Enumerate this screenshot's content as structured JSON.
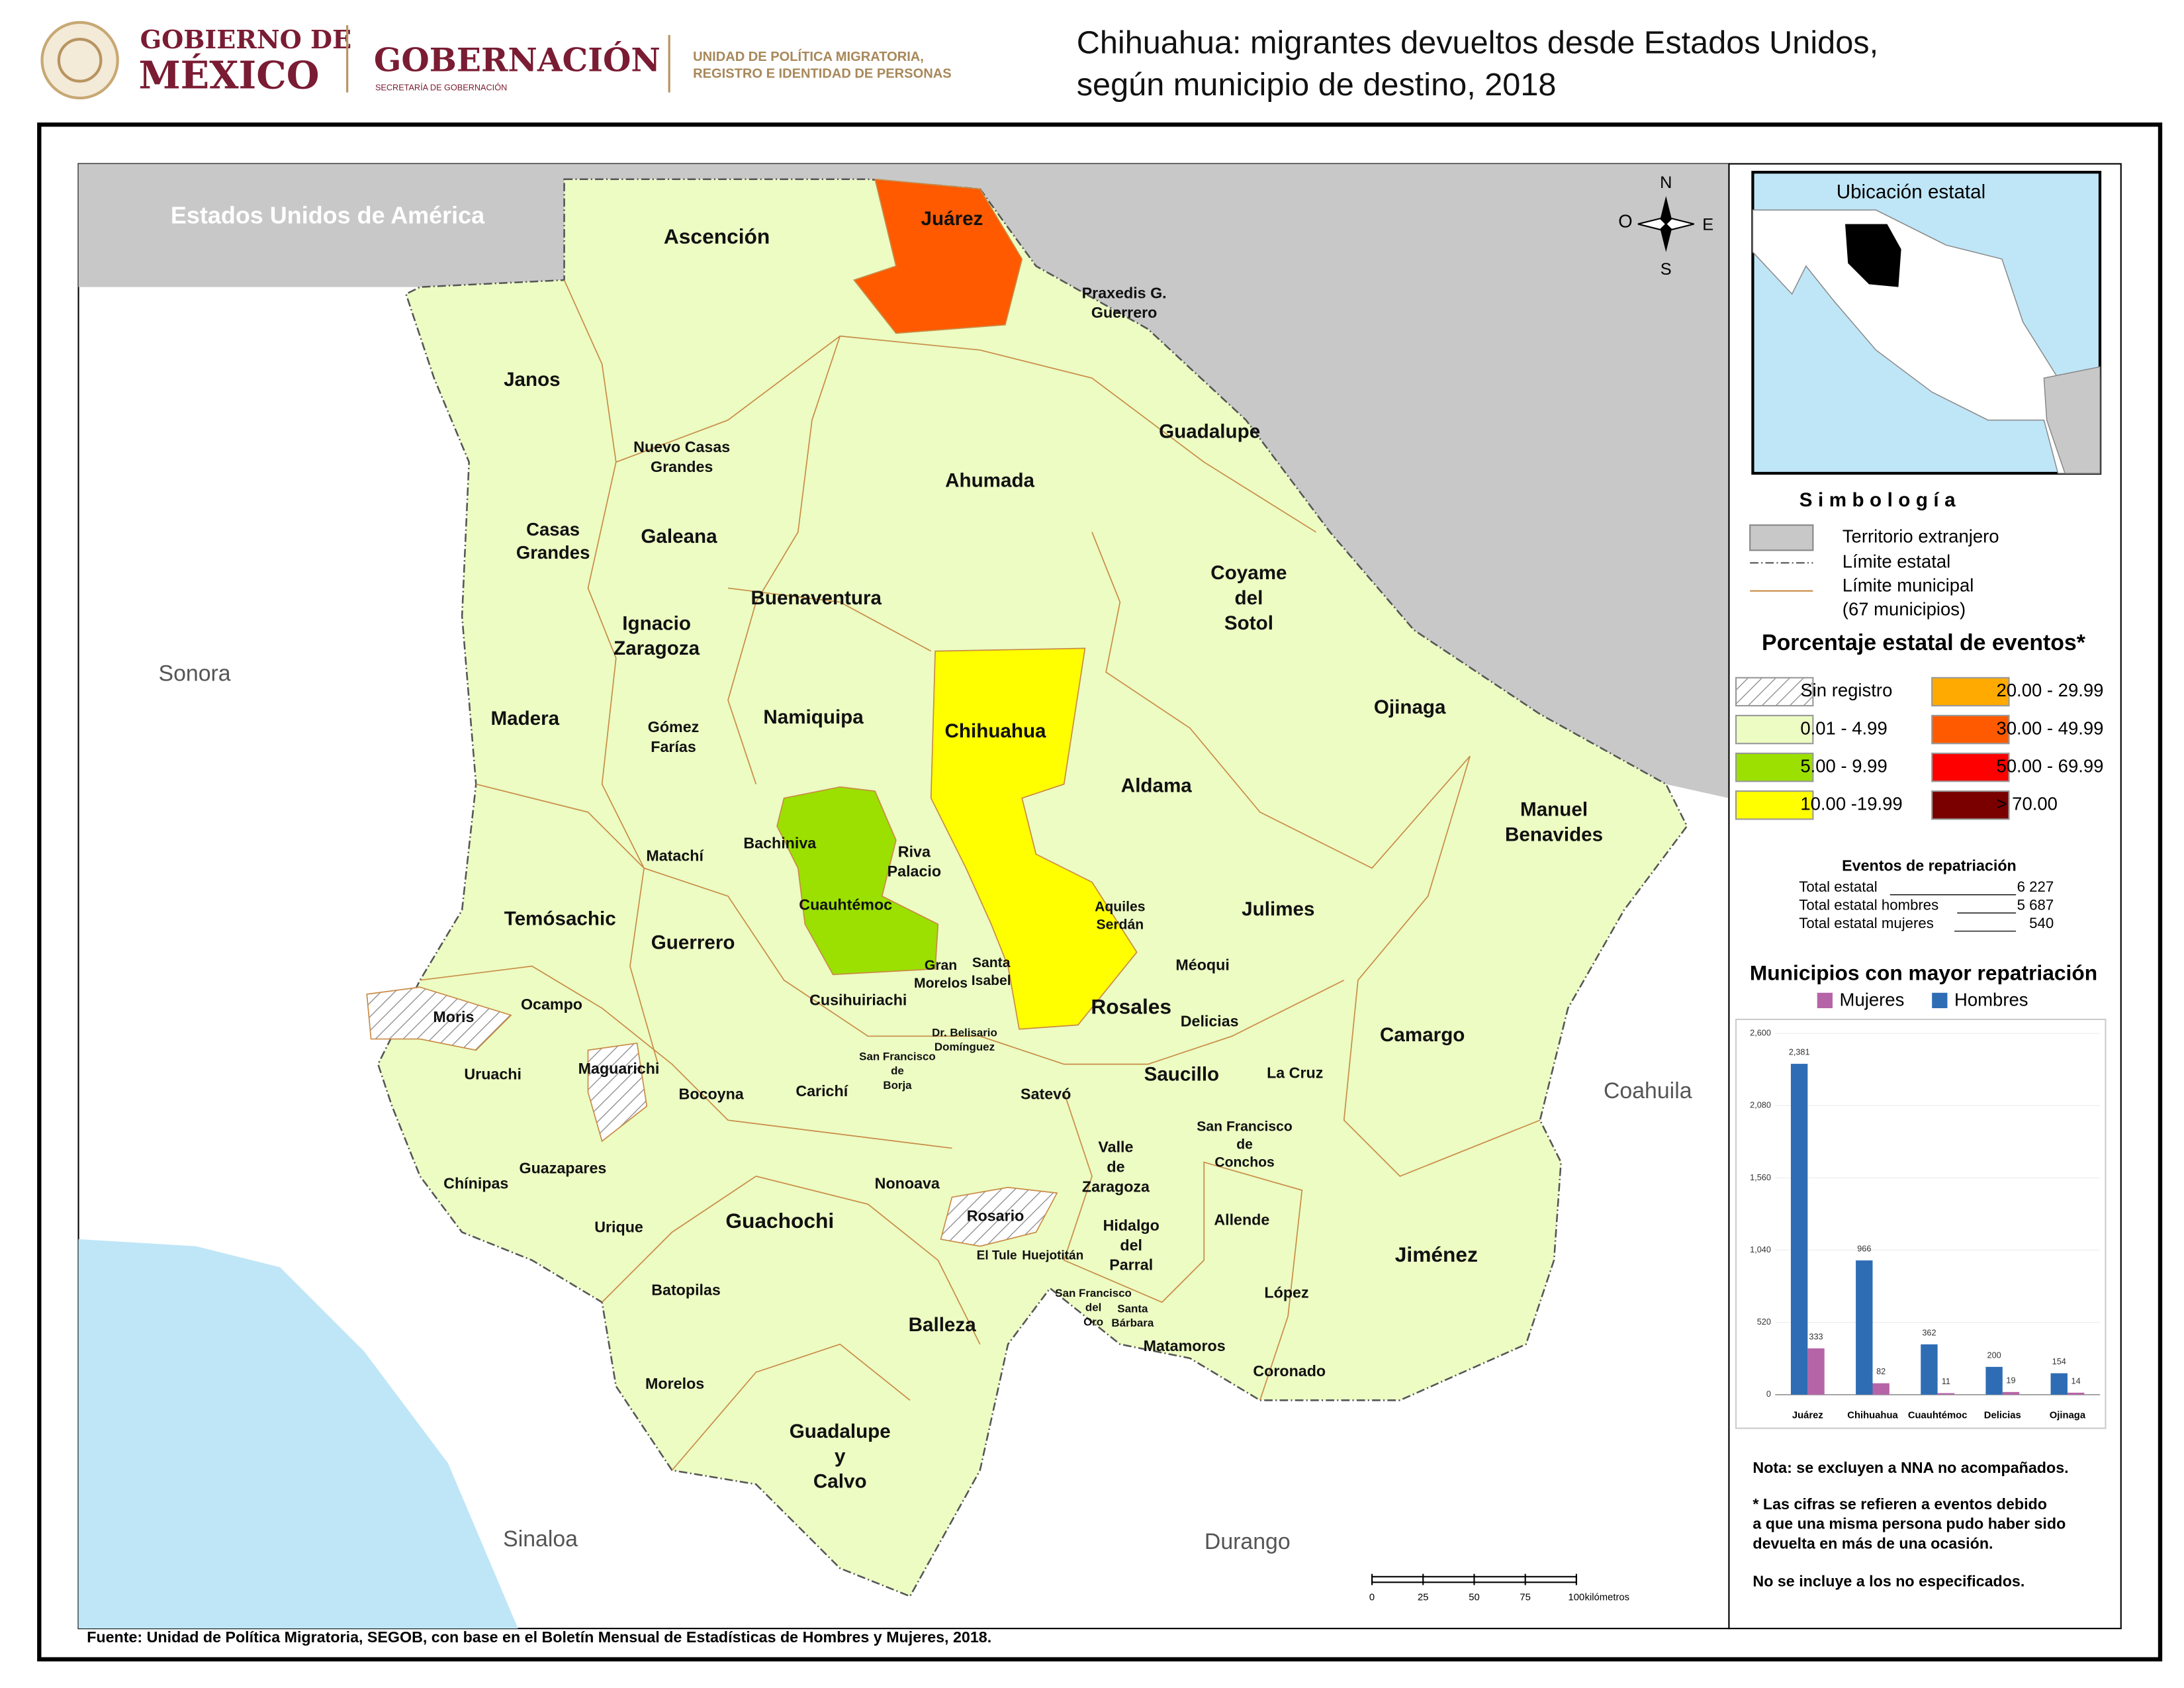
{
  "header": {
    "gov_line1": "GOBIERNO DE",
    "gov_line2": "MÉXICO",
    "ministry": "GOBERNACIÓN",
    "ministry_sub": "SECRETARÍA DE GOBERNACIÓN",
    "unit_line1": "UNIDAD DE POLÍTICA MIGRATORIA,",
    "unit_line2": "REGISTRO E IDENTIDAD DE PERSONAS"
  },
  "title": [
    "Chihuahua: migrantes devueltos desde Estados Unidos,",
    "según municipio de destino, 2018"
  ],
  "map": {
    "neighbors": [
      "Estados Unidos de América",
      "Sonora",
      "Coahuila",
      "Sinaloa",
      "Durango"
    ],
    "municipalities": [
      [
        "Ascención"
      ],
      [
        "Juárez"
      ],
      [
        "Janos"
      ],
      [
        "Guadalupe"
      ],
      [
        "Ahumada"
      ],
      [
        "Nuevo Casas",
        "Grandes"
      ],
      [
        "Casas",
        "Grandes"
      ],
      [
        "Galeana"
      ],
      [
        "Praxedis G.",
        "Guerrero"
      ],
      [
        "Buenaventura"
      ],
      [
        "Coyame",
        "del",
        "Sotol"
      ],
      [
        "Ignacio",
        "Zaragoza"
      ],
      [
        "Madera"
      ],
      [
        "Namiquipa"
      ],
      [
        "Chihuahua"
      ],
      [
        "Ojinaga"
      ],
      [
        "Gómez",
        "Farías"
      ],
      [
        "Aldama"
      ],
      [
        "Manuel",
        "Benavides"
      ],
      [
        "Matachí"
      ],
      [
        "Bachiniva"
      ],
      [
        "Riva",
        "Palacio"
      ],
      [
        "Cuauhtémoc"
      ],
      [
        "Aquiles",
        "Serdán"
      ],
      [
        "Temósachic"
      ],
      [
        "Guerrero"
      ],
      [
        "Julimes"
      ],
      [
        "Méoqui"
      ],
      [
        "Gran",
        "Morelos"
      ],
      [
        "Santa",
        "Isabel"
      ],
      [
        "Rosales"
      ],
      [
        "Moris"
      ],
      [
        "Ocampo"
      ],
      [
        "Cusihuiriachi"
      ],
      [
        "Delicias"
      ],
      [
        "Dr. Belisario",
        "Domínguez"
      ],
      [
        "Camargo"
      ],
      [
        "Saucillo"
      ],
      [
        "La Cruz"
      ],
      [
        "Uruachi"
      ],
      [
        "Maguarichi"
      ],
      [
        "Bocoyna"
      ],
      [
        "Carichí"
      ],
      [
        "San Francisco",
        "de",
        "Borja"
      ],
      [
        "Satevó"
      ],
      [
        "San Francisco",
        "de",
        "Conchos"
      ],
      [
        "Valle",
        "de",
        "Zaragoza"
      ],
      [
        "Guazapares"
      ],
      [
        "Chínipas"
      ],
      [
        "Nonoava"
      ],
      [
        "Rosario"
      ],
      [
        "Allende"
      ],
      [
        "Hidalgo",
        "del",
        "Parral"
      ],
      [
        "Urique"
      ],
      [
        "Guachochi"
      ],
      [
        "Jiménez"
      ],
      [
        "El Tule"
      ],
      [
        "Huejotitán"
      ],
      [
        "Batopilas"
      ],
      [
        "López"
      ],
      [
        "San Francisco",
        "del",
        "Oro"
      ],
      [
        "Santa",
        "Bárbara"
      ],
      [
        "Balleza"
      ],
      [
        "Matamoros"
      ],
      [
        "Coronado"
      ],
      [
        "Morelos"
      ],
      [
        "Guadalupe",
        "y",
        "Calvo"
      ]
    ],
    "compass": {
      "n": "N",
      "w": "O",
      "e": "E",
      "s": "S"
    },
    "scale": {
      "ticks": [
        0,
        25,
        50,
        75,
        100
      ],
      "unit": "kilómetros"
    }
  },
  "inset": {
    "title": "Ubicación estatal"
  },
  "legend": {
    "title": "Simbología",
    "foreign": "Territorio extranjero",
    "state_limit": "Límite estatal",
    "municipal_limit": "Límite municipal",
    "municipal_count": "(67 municipios)",
    "classes_title": "Porcentaje estatal de eventos*",
    "classes": [
      {
        "label": "Sin registro",
        "color": "hatch"
      },
      {
        "label": "0.01  - 4.99",
        "color": "#ecfcc3"
      },
      {
        "label": "5.00  - 9.99",
        "color": "#9be000"
      },
      {
        "label": "10.00 -19.99",
        "color": "#ffff00"
      },
      {
        "label": "20.00 - 29.99",
        "color": "#ffaa00"
      },
      {
        "label": "30.00 - 49.99",
        "color": "#ff5a00"
      },
      {
        "label": "50.00 - 69.99",
        "color": "#ff0000"
      },
      {
        "label": "> 70.00",
        "color": "#7a0000"
      }
    ]
  },
  "summary": {
    "title": "Eventos de repatriación",
    "rows": [
      [
        "Total estatal",
        "6 227"
      ],
      [
        "Total estatal hombres",
        "5 687"
      ],
      [
        "Total estatal mujeres",
        "540"
      ]
    ]
  },
  "chart_data": {
    "type": "bar",
    "title": "Municipios con mayor repatriación",
    "categories": [
      "Juárez",
      "Chihuahua",
      "Cuauhtémoc",
      "Delicias",
      "Ojinaga"
    ],
    "series": [
      {
        "name": "Mujeres",
        "color": "#b565a7",
        "values": [
          333,
          82,
          11,
          19,
          14
        ],
        "value_labels": [
          "333",
          "82",
          "11",
          "19",
          "14"
        ]
      },
      {
        "name": "Hombres",
        "color": "#2e6db4",
        "values": [
          2381,
          966,
          362,
          200,
          154
        ],
        "value_labels": [
          "2,381",
          "966",
          "362",
          "200",
          "154"
        ]
      }
    ],
    "ylim": [
      0,
      2600
    ],
    "yticks": [
      0,
      520,
      {
        "value": 1040,
        "label": "1,040"
      },
      {
        "value": 1560,
        "label": "1,560"
      },
      {
        "value": 2080,
        "label": "2,080"
      },
      {
        "value": 2600,
        "label": "2,600"
      }
    ],
    "grid": true
  },
  "notes": [
    "Nota: se excluyen a NNA no acompañados.",
    "* Las cifras se refieren a eventos debido",
    "a que una misma persona pudo haber sido",
    "devuelta en más de una ocasión.",
    "No se incluye a los no especificados."
  ],
  "source": "Fuente: Unidad de Política Migratoria, SEGOB, con base en el Boletín Mensual de Estadísticas de Hombres y Mujeres, 2018."
}
